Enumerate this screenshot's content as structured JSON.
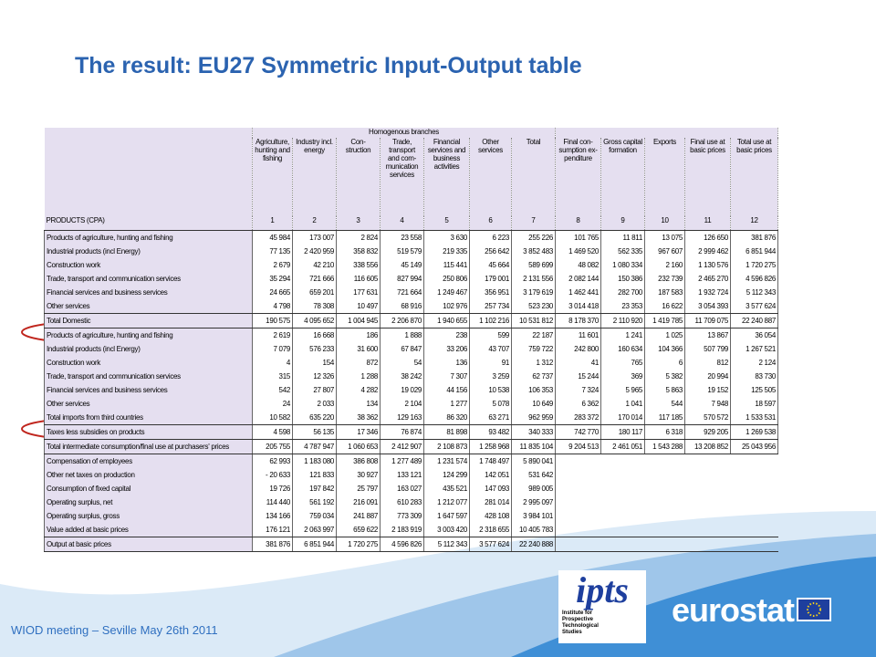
{
  "title": "The result: EU27 Symmetric Input-Output table",
  "table": {
    "group_header": "Homogenous branches",
    "columns": [
      "Agriculture, hunting and fishing",
      "Industry incl. energy",
      "Con-struction",
      "Trade, transport and com-munication services",
      "Financial services and business activities",
      "Other services",
      "Total",
      "Final con-sumption ex-penditure",
      "Gross capital formation",
      "Exports",
      "Final use at basic prices",
      "Total use at basic prices"
    ],
    "column_numbers_label": "PRODUCTS (CPA)",
    "column_numbers": [
      1,
      2,
      3,
      4,
      5,
      6,
      7,
      8,
      9,
      10,
      11,
      12
    ],
    "rows": [
      {
        "label": "Products of agriculture, hunting and fishing",
        "values": [
          "45 984",
          "173 007",
          "2 824",
          "23 558",
          "3 630",
          "6 223",
          "255 226",
          "101 765",
          "11 811",
          "13 075",
          "126 650",
          "381 876"
        ]
      },
      {
        "label": "Industrial products (incl Energy)",
        "values": [
          "77 135",
          "2 420 959",
          "358 832",
          "519 579",
          "219 335",
          "256 642",
          "3 852 483",
          "1 469 520",
          "562 335",
          "967 607",
          "2 999 462",
          "6 851 944"
        ]
      },
      {
        "label": "Construction work",
        "values": [
          "2 679",
          "42 210",
          "338 556",
          "45 149",
          "115 441",
          "45 664",
          "589 699",
          "48 082",
          "1 080 334",
          "2 160",
          "1 130 576",
          "1 720 275"
        ]
      },
      {
        "label": "Trade, transport and communication services",
        "values": [
          "35 294",
          "721 666",
          "116 605",
          "827 994",
          "250 806",
          "179 001",
          "2 131 556",
          "2 082 144",
          "150 386",
          "232 739",
          "2 465 270",
          "4 596 826"
        ]
      },
      {
        "label": "Financial services and business services",
        "values": [
          "24 665",
          "659 201",
          "177 631",
          "721 664",
          "1 249 467",
          "356 951",
          "3 179 619",
          "1 462 441",
          "282 700",
          "187 583",
          "1 932 724",
          "5 112 343"
        ]
      },
      {
        "label": "Other services",
        "values": [
          "4 798",
          "78 308",
          "10 497",
          "68 916",
          "102 976",
          "257 734",
          "523 230",
          "3 014 418",
          "23 353",
          "16 622",
          "3 054 393",
          "3 577 624"
        ]
      },
      {
        "label": "Total Domestic",
        "values": [
          "190 575",
          "4 095 652",
          "1 004 945",
          "2 206 870",
          "1 940 655",
          "1 102 216",
          "10 531 812",
          "8 178 370",
          "2 110 920",
          "1 419 785",
          "11 709 075",
          "22 240 887"
        ]
      },
      {
        "label": "Products of agriculture, hunting and fishing",
        "values": [
          "2 619",
          "16 668",
          "186",
          "1 888",
          "238",
          "599",
          "22 187",
          "11 601",
          "1 241",
          "1 025",
          "13 867",
          "36 054"
        ]
      },
      {
        "label": "Industrial products (incl Energy)",
        "values": [
          "7 079",
          "576 233",
          "31 600",
          "67 847",
          "33 206",
          "43 707",
          "759 722",
          "242 800",
          "160 634",
          "104 366",
          "507 799",
          "1 267 521"
        ]
      },
      {
        "label": "Construction work",
        "values": [
          "4",
          "154",
          "872",
          "54",
          "136",
          "91",
          "1 312",
          "41",
          "765",
          "6",
          "812",
          "2 124"
        ]
      },
      {
        "label": "Trade, transport and communication services",
        "values": [
          "315",
          "12 326",
          "1 288",
          "38 242",
          "7 307",
          "3 259",
          "62 737",
          "15 244",
          "369",
          "5 382",
          "20 994",
          "83 730"
        ]
      },
      {
        "label": "Financial services and business services",
        "values": [
          "542",
          "27 807",
          "4 282",
          "19 029",
          "44 156",
          "10 538",
          "106 353",
          "7 324",
          "5 965",
          "5 863",
          "19 152",
          "125 505"
        ]
      },
      {
        "label": "Other services",
        "values": [
          "24",
          "2 033",
          "134",
          "2 104",
          "1 277",
          "5 078",
          "10 649",
          "6 362",
          "1 041",
          "544",
          "7 948",
          "18 597"
        ]
      },
      {
        "label": "Total imports from third countries",
        "values": [
          "10 582",
          "635 220",
          "38 362",
          "129 163",
          "86 320",
          "63 271",
          "962 959",
          "283 372",
          "170 014",
          "117 185",
          "570 572",
          "1 533 531"
        ]
      },
      {
        "label": "Taxes less subsidies on products",
        "values": [
          "4 598",
          "56 135",
          "17 346",
          "76 874",
          "81 898",
          "93 482",
          "340 333",
          "742 770",
          "180 117",
          "6 318",
          "929 205",
          "1 269 538"
        ]
      },
      {
        "label": "Total intermediate consumption/final use at purchasers' prices",
        "values": [
          "205 755",
          "4 787 947",
          "1 060 653",
          "2 412 907",
          "2 108 873",
          "1 258 968",
          "11 835 104",
          "9 204 513",
          "2 461 051",
          "1 543 288",
          "13 208 852",
          "25 043 956"
        ]
      },
      {
        "label": "Compensation of employees",
        "values": [
          "62 993",
          "1 183 080",
          "386 808",
          "1 277 489",
          "1 231 574",
          "1 748 497",
          "5 890 041"
        ]
      },
      {
        "label": "Other net taxes on production",
        "values": [
          "- 20 633",
          "121 833",
          "30 927",
          "133 121",
          "124 299",
          "142 051",
          "531 642"
        ]
      },
      {
        "label": "Consumption of fixed capital",
        "values": [
          "19 726",
          "197 842",
          "25 797",
          "163 027",
          "435 521",
          "147 093",
          "989 005"
        ]
      },
      {
        "label": "Operating surplus, net",
        "values": [
          "114 440",
          "561 192",
          "216 091",
          "610 283",
          "1 212 077",
          "281 014",
          "2 995 097"
        ]
      },
      {
        "label": "Operating surplus, gross",
        "values": [
          "134 166",
          "759 034",
          "241 887",
          "773 309",
          "1 647 597",
          "428 108",
          "3 984 101"
        ]
      },
      {
        "label": "Value added at basic prices",
        "values": [
          "176 121",
          "2 063 997",
          "659 622",
          "2 183 919",
          "3 003 420",
          "2 318 655",
          "10 405 783"
        ]
      },
      {
        "label": "Output at basic prices",
        "values": [
          "381 876",
          "6 851 944",
          "1 720 275",
          "4 596 826",
          "5 112 343",
          "3 577 624",
          "22 240 888"
        ]
      }
    ]
  },
  "footer": "WIOD meeting – Seville May 26th 2011",
  "logos": {
    "ipts": "ipts",
    "ipts_caption": "Institute for Prospective Technological Studies",
    "eurostat": "eurostat"
  }
}
